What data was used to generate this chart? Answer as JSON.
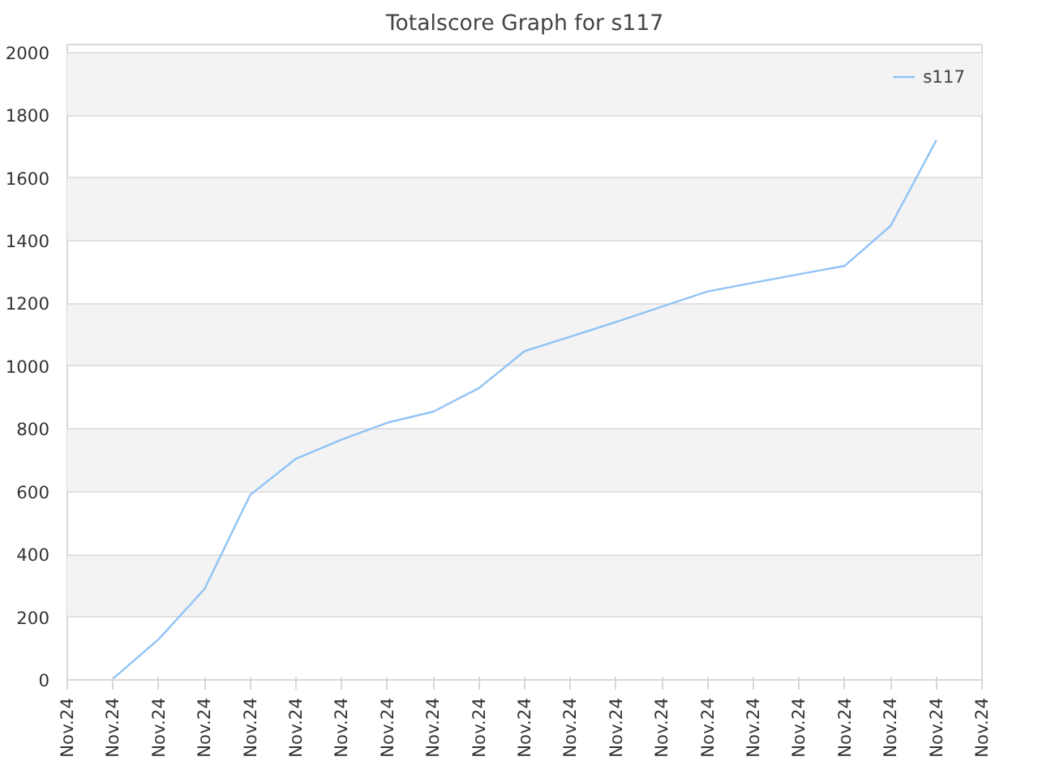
{
  "chart_data": {
    "type": "line",
    "title": "Totalscore Graph for s117",
    "categories": [
      "Nov.24",
      "Nov.24",
      "Nov.24",
      "Nov.24",
      "Nov.24",
      "Nov.24",
      "Nov.24",
      "Nov.24",
      "Nov.24",
      "Nov.24",
      "Nov.24",
      "Nov.24",
      "Nov.24",
      "Nov.24",
      "Nov.24",
      "Nov.24",
      "Nov.24",
      "Nov.24",
      "Nov.24",
      "Nov.24",
      "Nov.24"
    ],
    "series": [
      {
        "name": "s117",
        "color": "#90c3f5",
        "values": [
          null,
          4,
          130,
          290,
          590,
          705,
          766,
          820,
          855,
          930,
          1048,
          1094,
          1141,
          1190,
          1238,
          1266,
          1293,
          1320,
          1447,
          1720,
          null
        ]
      }
    ],
    "ylim": [
      0,
      2025
    ],
    "yticks": [
      0,
      200,
      400,
      600,
      800,
      1000,
      1200,
      1400,
      1600,
      1800,
      2000
    ],
    "grid": "y",
    "legend": "top right",
    "marker": "none",
    "line_style": "solid"
  }
}
